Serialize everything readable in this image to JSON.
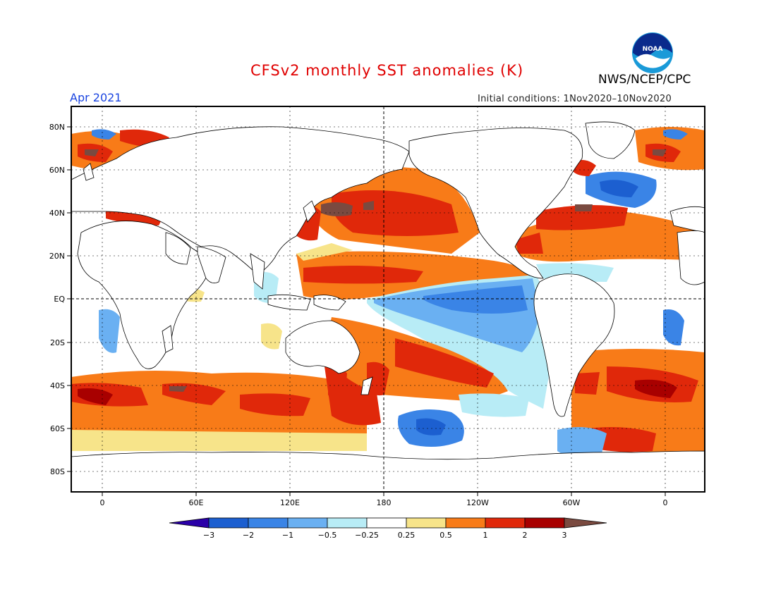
{
  "header": {
    "title": "CFSv2 monthly SST anomalies (K)",
    "org": "NWS/NCEP/CPC",
    "month": "Apr 2021",
    "initial_conditions": "Initial conditions: 1Nov2020–10Nov2020",
    "logo_text": "NOAA"
  },
  "axes": {
    "lat_ticks": [
      "80N",
      "60N",
      "40N",
      "20N",
      "EQ",
      "20S",
      "40S",
      "60S",
      "80S"
    ],
    "lon_ticks": [
      "0",
      "60E",
      "120E",
      "180",
      "120W",
      "60W",
      "0"
    ]
  },
  "colorbar": {
    "labels": [
      "−3",
      "−2",
      "−1",
      "−0.5",
      "−0.25",
      "0.25",
      "0.5",
      "1",
      "2",
      "3"
    ],
    "colors": [
      "#2a00a8",
      "#1c5fd0",
      "#3a84e6",
      "#6ab0f2",
      "#b8ecf6",
      "#ffffff",
      "#f7e48a",
      "#f87b18",
      "#e0280a",
      "#a80000",
      "#7a4a40"
    ]
  }
}
